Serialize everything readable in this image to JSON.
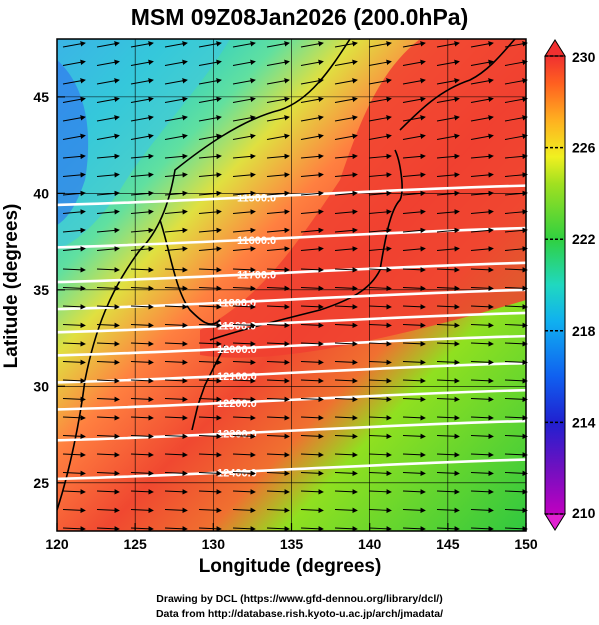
{
  "title": "MSM 09Z08Jan2026 (200.0hPa)",
  "credits": {
    "line1": "Drawing by DCL (https://www.gfd-dennou.org/library/dcl/)",
    "line2": "Data from http://database.rish.kyoto-u.ac.jp/arch/jmadata/"
  },
  "chart_data": {
    "type": "heatmap",
    "title": "MSM 09Z08Jan2026 (200.0hPa)",
    "xlabel": "Longitude (degrees)",
    "ylabel": "Latitude  (degrees)",
    "xlim": [
      120,
      150
    ],
    "ylim": [
      22.5,
      48
    ],
    "xticks": [
      "120",
      "125",
      "130",
      "135",
      "140",
      "145",
      "150"
    ],
    "yticks": [
      "25",
      "30",
      "35",
      "40",
      "45"
    ],
    "grid": true,
    "colorbar": {
      "min": 210,
      "max": 230,
      "ticks": [
        "210",
        "214",
        "218",
        "222",
        "226",
        "230"
      ],
      "colors": [
        "#b000c0",
        "#3030e0",
        "#2090f0",
        "#20d0d0",
        "#30d040",
        "#80e020",
        "#e0f020",
        "#ffc020",
        "#ff7020",
        "#f03030"
      ]
    },
    "contours": [
      {
        "label": "11500.0",
        "lat": 38.8
      },
      {
        "label": "11600.0",
        "lat": 36.6
      },
      {
        "label": "11700.0",
        "lat": 34.8
      },
      {
        "label": "11800.0",
        "lat": 33.4
      },
      {
        "label": "11900.0",
        "lat": 32.2
      },
      {
        "label": "12000.0",
        "lat": 31.0
      },
      {
        "label": "12100.0",
        "lat": 29.6
      },
      {
        "label": "12200.0",
        "lat": 28.2
      },
      {
        "label": "12300.0",
        "lat": 26.6
      },
      {
        "label": "12400.0",
        "lat": 24.6
      }
    ],
    "wind_direction": "westerly"
  }
}
